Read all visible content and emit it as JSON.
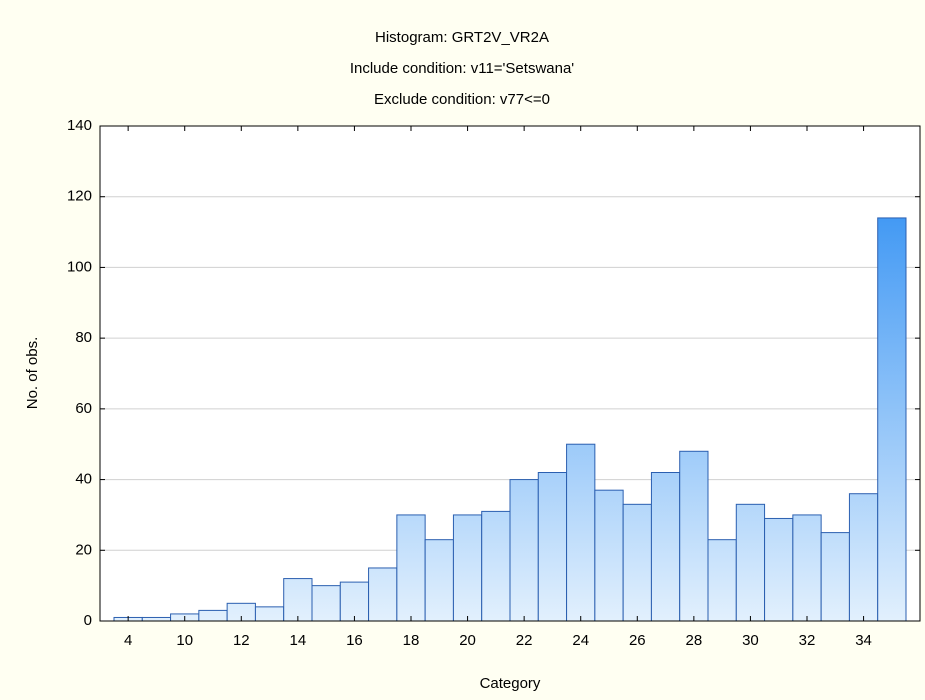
{
  "chart_data": {
    "type": "bar",
    "title": "Histogram: GRT2V_VR2A",
    "subtitles": [
      "Include condition: v11='Setswana'",
      "Exclude condition: v77<=0"
    ],
    "x_label": "Category",
    "y_label": "No. of obs.",
    "categories": [
      "4",
      null,
      "10",
      null,
      "12",
      null,
      "14",
      null,
      "16",
      null,
      "18",
      null,
      "20",
      null,
      "22",
      null,
      "24",
      null,
      "26",
      null,
      "28",
      null,
      "30",
      null,
      "32",
      null,
      "34",
      null
    ],
    "values": [
      1,
      1,
      2,
      3,
      5,
      4,
      12,
      10,
      11,
      15,
      30,
      23,
      30,
      31,
      40,
      42,
      50,
      37,
      33,
      42,
      48,
      23,
      33,
      29,
      30,
      25,
      36,
      114
    ],
    "gradient": [
      "#e2f0fd",
      "#1f86f2"
    ],
    "edge_color": "#2b5fb0",
    "ylim": [
      0,
      140
    ],
    "yticks": [
      0,
      20,
      40,
      60,
      80,
      100,
      120,
      140
    ],
    "grid": true
  }
}
